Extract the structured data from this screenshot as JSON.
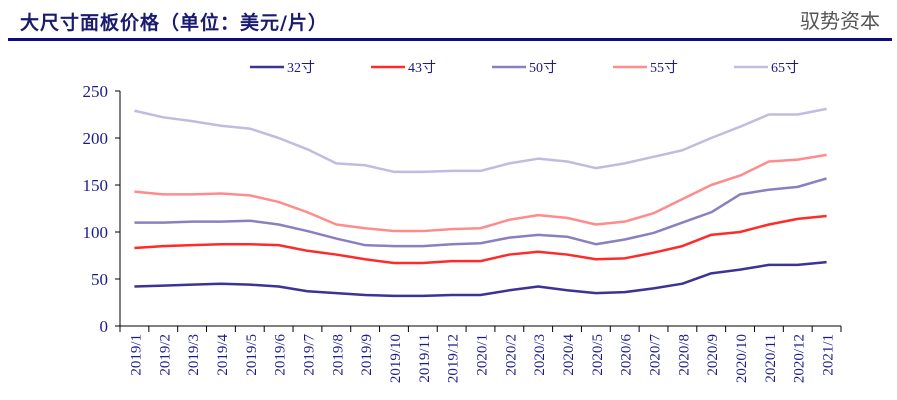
{
  "title": "大尺寸面板价格（单位：美元/片）",
  "watermark": "驭势资本",
  "chart_data": {
    "type": "line",
    "title": "大尺寸面板价格（单位：美元/片）",
    "xlabel": "",
    "ylabel": "",
    "ylim": [
      0,
      250
    ],
    "yticks": [
      0,
      50,
      100,
      150,
      200,
      250
    ],
    "legend_position": "top",
    "categories": [
      "2019/1",
      "2019/2",
      "2019/3",
      "2019/4",
      "2019/5",
      "2019/6",
      "2019/7",
      "2019/8",
      "2019/9",
      "2019/10",
      "2019/11",
      "2019/12",
      "2020/1",
      "2020/2",
      "2020/3",
      "2020/4",
      "2020/5",
      "2020/6",
      "2020/7",
      "2020/8",
      "2020/9",
      "2020/10",
      "2020/11",
      "2020/12",
      "2021/1"
    ],
    "series": [
      {
        "name": "32寸",
        "color": "#3d3296",
        "values": [
          42,
          43,
          44,
          45,
          44,
          42,
          37,
          35,
          33,
          32,
          32,
          33,
          33,
          38,
          42,
          38,
          35,
          36,
          40,
          45,
          56,
          60,
          65,
          65,
          68
        ]
      },
      {
        "name": "43寸",
        "color": "#ff2b2b",
        "values": [
          83,
          85,
          86,
          87,
          87,
          86,
          80,
          76,
          71,
          67,
          67,
          69,
          69,
          76,
          79,
          76,
          71,
          72,
          78,
          85,
          97,
          100,
          108,
          114,
          117
        ]
      },
      {
        "name": "50寸",
        "color": "#8a80c0",
        "values": [
          110,
          110,
          111,
          111,
          112,
          108,
          101,
          93,
          86,
          85,
          85,
          87,
          88,
          94,
          97,
          95,
          87,
          92,
          99,
          110,
          121,
          140,
          145,
          148,
          157
        ]
      },
      {
        "name": "55寸",
        "color": "#ff8c8c",
        "values": [
          143,
          140,
          140,
          141,
          139,
          132,
          121,
          108,
          104,
          101,
          101,
          103,
          104,
          113,
          118,
          115,
          108,
          111,
          120,
          135,
          150,
          160,
          175,
          177,
          182
        ]
      },
      {
        "name": "65寸",
        "color": "#c2bbe0",
        "values": [
          229,
          222,
          218,
          213,
          210,
          200,
          188,
          173,
          171,
          164,
          164,
          165,
          165,
          173,
          178,
          175,
          168,
          173,
          180,
          187,
          200,
          212,
          225,
          225,
          231
        ]
      }
    ]
  }
}
